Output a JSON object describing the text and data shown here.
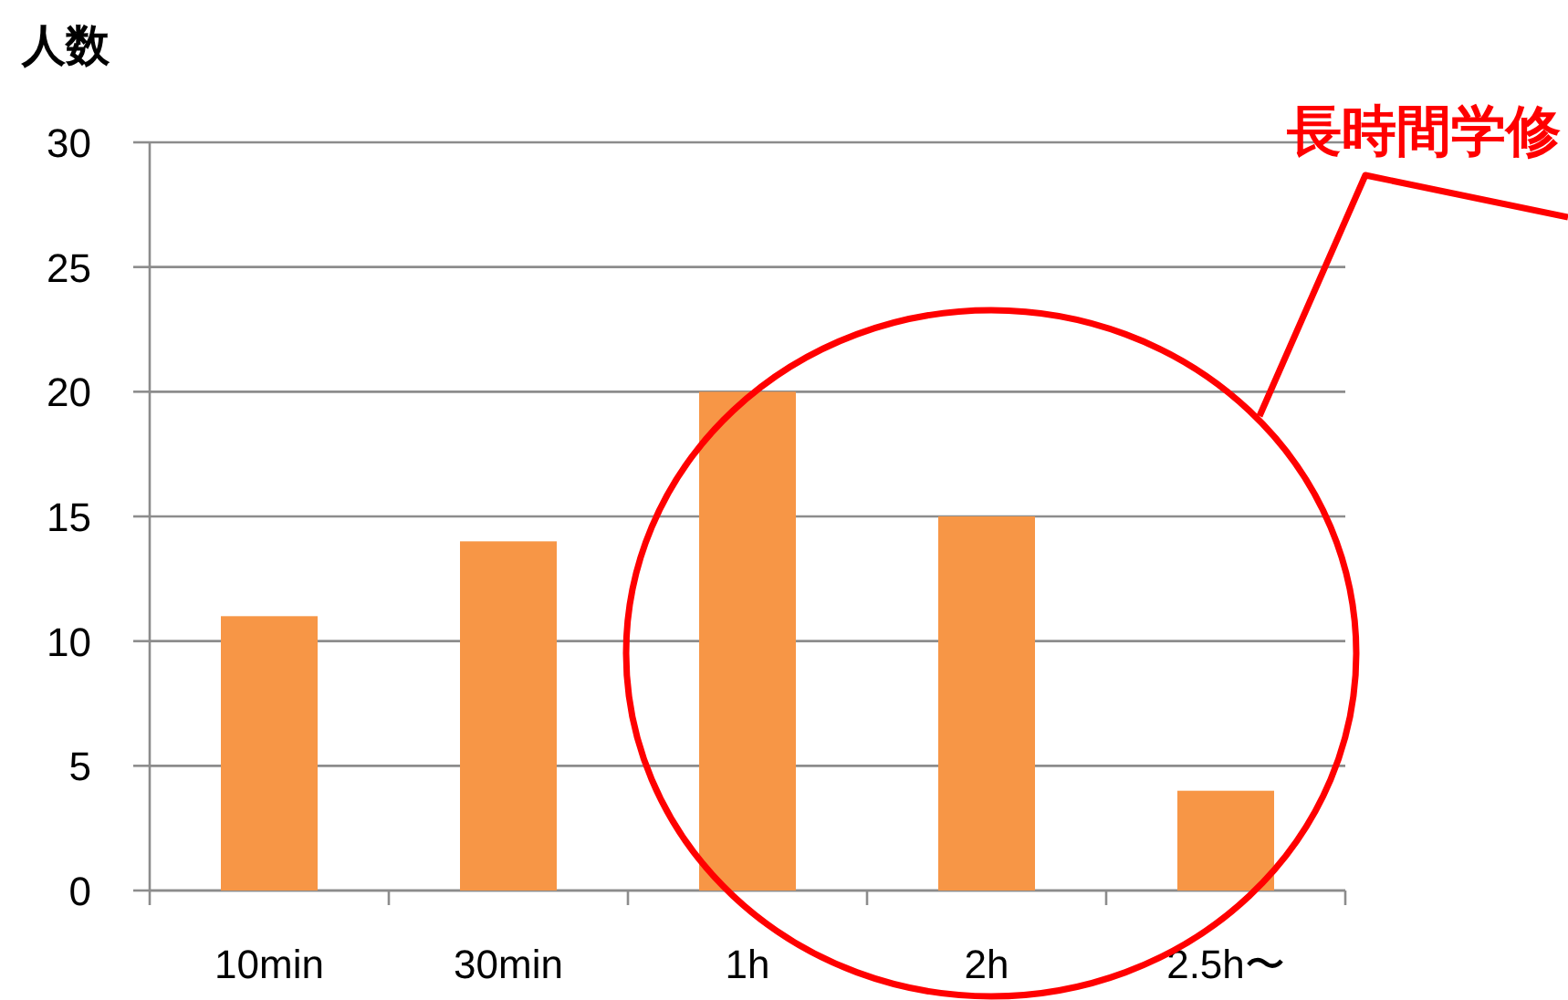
{
  "chart_data": {
    "type": "bar",
    "ylabel": "人数",
    "categories": [
      "10min",
      "30min",
      "1h",
      "2h",
      "2.5h〜"
    ],
    "values": [
      11,
      14,
      20,
      15,
      4
    ],
    "color": "#f79646",
    "ylim": [
      0,
      30
    ],
    "yticks": [
      0,
      5,
      10,
      15,
      20,
      25,
      30
    ],
    "grid": "y",
    "annotations": [
      "長時間学修"
    ]
  }
}
